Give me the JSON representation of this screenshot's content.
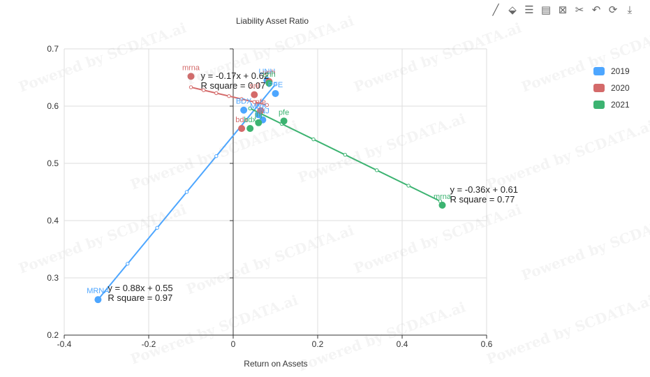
{
  "toolbar": {
    "items": [
      {
        "name": "line-icon",
        "glyph": "╱"
      },
      {
        "name": "tag-icon",
        "glyph": "⬙"
      },
      {
        "name": "data-view-icon",
        "glyph": "☰"
      },
      {
        "name": "comment-icon",
        "glyph": "▤"
      },
      {
        "name": "bookmark-icon",
        "glyph": "⊠"
      },
      {
        "name": "cut-icon",
        "glyph": "✂"
      },
      {
        "name": "undo-icon",
        "glyph": "↶"
      },
      {
        "name": "refresh-icon",
        "glyph": "⟳"
      },
      {
        "name": "download-icon",
        "glyph": "⤓"
      }
    ]
  },
  "watermark": "Powered by SCDATA.ai",
  "chart_data": {
    "type": "scatter",
    "title": "Liability Asset Ratio",
    "xlabel": "Return on Assets",
    "ylabel": "",
    "xlim": [
      -0.4,
      0.6
    ],
    "ylim": [
      0.2,
      0.7
    ],
    "xticks": [
      "-0.4",
      "-0.2",
      "0",
      "0.2",
      "0.4",
      "0.6"
    ],
    "yticks": [
      "0.2",
      "0.3",
      "0.4",
      "0.5",
      "0.6",
      "0.7"
    ],
    "grid": true,
    "legend_position": "right",
    "series": [
      {
        "name": "2019",
        "color": "#4da6ff",
        "points": [
          {
            "x": -0.32,
            "y": 0.262,
            "label": "MRNA"
          },
          {
            "x": 0.025,
            "y": 0.593,
            "label": "BDX"
          },
          {
            "x": 0.07,
            "y": 0.576,
            "label": "JNJ"
          },
          {
            "x": 0.1,
            "y": 0.622,
            "label": "PFE"
          },
          {
            "x": 0.08,
            "y": 0.645,
            "label": "UNH"
          },
          {
            "x": 0.06,
            "y": 0.585,
            "label": "MRK"
          }
        ],
        "trendline": {
          "x": [
            -0.32,
            0.1
          ],
          "y": [
            0.262,
            0.638
          ],
          "equation": "y = 0.88x + 0.55",
          "r2": "R square = 0.97"
        }
      },
      {
        "name": "2020",
        "color": "#d46a6a",
        "points": [
          {
            "x": -0.1,
            "y": 0.652,
            "label": "mrna"
          },
          {
            "x": 0.02,
            "y": 0.561,
            "label": "bdx"
          },
          {
            "x": 0.05,
            "y": 0.62,
            "label": "snl"
          },
          {
            "x": 0.065,
            "y": 0.592,
            "label": "pfe"
          },
          {
            "x": 0.085,
            "y": 0.643,
            "label": "unh"
          }
        ],
        "trendline": {
          "x": [
            -0.1,
            0.08
          ],
          "y": [
            0.633,
            0.602
          ],
          "equation": "y = -0.17x + 0.62",
          "r2": "R square = 0.07"
        }
      },
      {
        "name": "2021",
        "color": "#3cb371",
        "points": [
          {
            "x": 0.495,
            "y": 0.427,
            "label": "mrna"
          },
          {
            "x": 0.12,
            "y": 0.574,
            "label": "pfe"
          },
          {
            "x": 0.04,
            "y": 0.561,
            "label": "bdx"
          },
          {
            "x": 0.06,
            "y": 0.571,
            "label": "jnj"
          },
          {
            "x": 0.085,
            "y": 0.64,
            "label": "unh"
          }
        ],
        "trendline": {
          "x": [
            0.04,
            0.49
          ],
          "y": [
            0.596,
            0.434
          ],
          "equation": "y = -0.36x + 0.61",
          "r2": "R square = 0.77"
        }
      }
    ]
  }
}
